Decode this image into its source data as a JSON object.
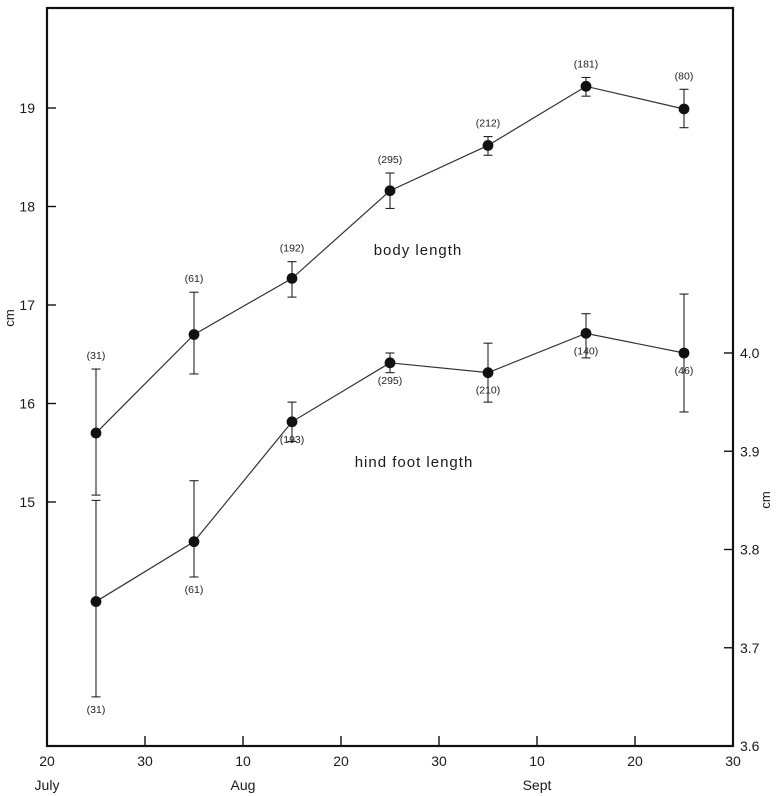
{
  "chart_data": {
    "type": "line",
    "x_axis": {
      "ticks": [
        {
          "day": 0,
          "label": "20"
        },
        {
          "day": 10,
          "label": "30"
        },
        {
          "day": 20,
          "label": "10"
        },
        {
          "day": 30,
          "label": "20"
        },
        {
          "day": 40,
          "label": "30"
        },
        {
          "day": 50,
          "label": "10"
        },
        {
          "day": 60,
          "label": "20"
        },
        {
          "day": 70,
          "label": "30"
        }
      ],
      "months": [
        {
          "label": "July",
          "day": 0
        },
        {
          "label": "Aug",
          "day": 20
        },
        {
          "label": "Sept",
          "day": 50
        }
      ],
      "range": [
        0,
        70
      ]
    },
    "y_left": {
      "label": "cm",
      "ticks": [
        "15",
        "16",
        "17",
        "18",
        "19"
      ],
      "tick_values": [
        15,
        16,
        17,
        18,
        19
      ],
      "range": [
        14,
        20
      ]
    },
    "y_right": {
      "label": "cm",
      "ticks": [
        "3.6",
        "3.7",
        "3.8",
        "3.9",
        "4.0"
      ],
      "tick_values": [
        3.6,
        3.7,
        3.8,
        3.9,
        4.0
      ],
      "range": [
        3.6,
        4.1
      ]
    },
    "series": [
      {
        "name": "body length",
        "axis": "left",
        "points": [
          {
            "day": 5,
            "y": 15.7,
            "err_low": 15.07,
            "err_high": 16.35,
            "n": "(31)"
          },
          {
            "day": 15,
            "y": 16.7,
            "err_low": 16.3,
            "err_high": 17.13,
            "n": "(61)"
          },
          {
            "day": 25,
            "y": 17.27,
            "err_low": 17.08,
            "err_high": 17.44,
            "n": "(192)"
          },
          {
            "day": 35,
            "y": 18.16,
            "err_low": 17.98,
            "err_high": 18.34,
            "n": "(295)"
          },
          {
            "day": 45,
            "y": 18.62,
            "err_low": 18.52,
            "err_high": 18.71,
            "n": "(212)"
          },
          {
            "day": 55,
            "y": 19.22,
            "err_low": 19.12,
            "err_high": 19.31,
            "n": "(181)"
          },
          {
            "day": 65,
            "y": 18.99,
            "err_low": 18.8,
            "err_high": 19.19,
            "n": "(80)"
          }
        ]
      },
      {
        "name": "hind foot length",
        "axis": "right",
        "points": [
          {
            "day": 5,
            "y": 3.747,
            "err_low": 3.65,
            "err_high": 3.85,
            "n": "(31)"
          },
          {
            "day": 15,
            "y": 3.808,
            "err_low": 3.772,
            "err_high": 3.87,
            "n": "(61)"
          },
          {
            "day": 25,
            "y": 3.93,
            "err_low": 3.91,
            "err_high": 3.95,
            "n": "(193)"
          },
          {
            "day": 35,
            "y": 3.99,
            "err_low": 3.98,
            "err_high": 4.0,
            "n": "(295)"
          },
          {
            "day": 45,
            "y": 3.98,
            "err_low": 3.95,
            "err_high": 4.01,
            "n": "(210)"
          },
          {
            "day": 55,
            "y": 4.02,
            "err_low": 3.995,
            "err_high": 4.04,
            "n": "(140)"
          },
          {
            "day": 65,
            "y": 4.0,
            "err_low": 3.94,
            "err_high": 4.06,
            "n": "(46)"
          }
        ]
      }
    ],
    "grid": false,
    "legend": "none"
  }
}
